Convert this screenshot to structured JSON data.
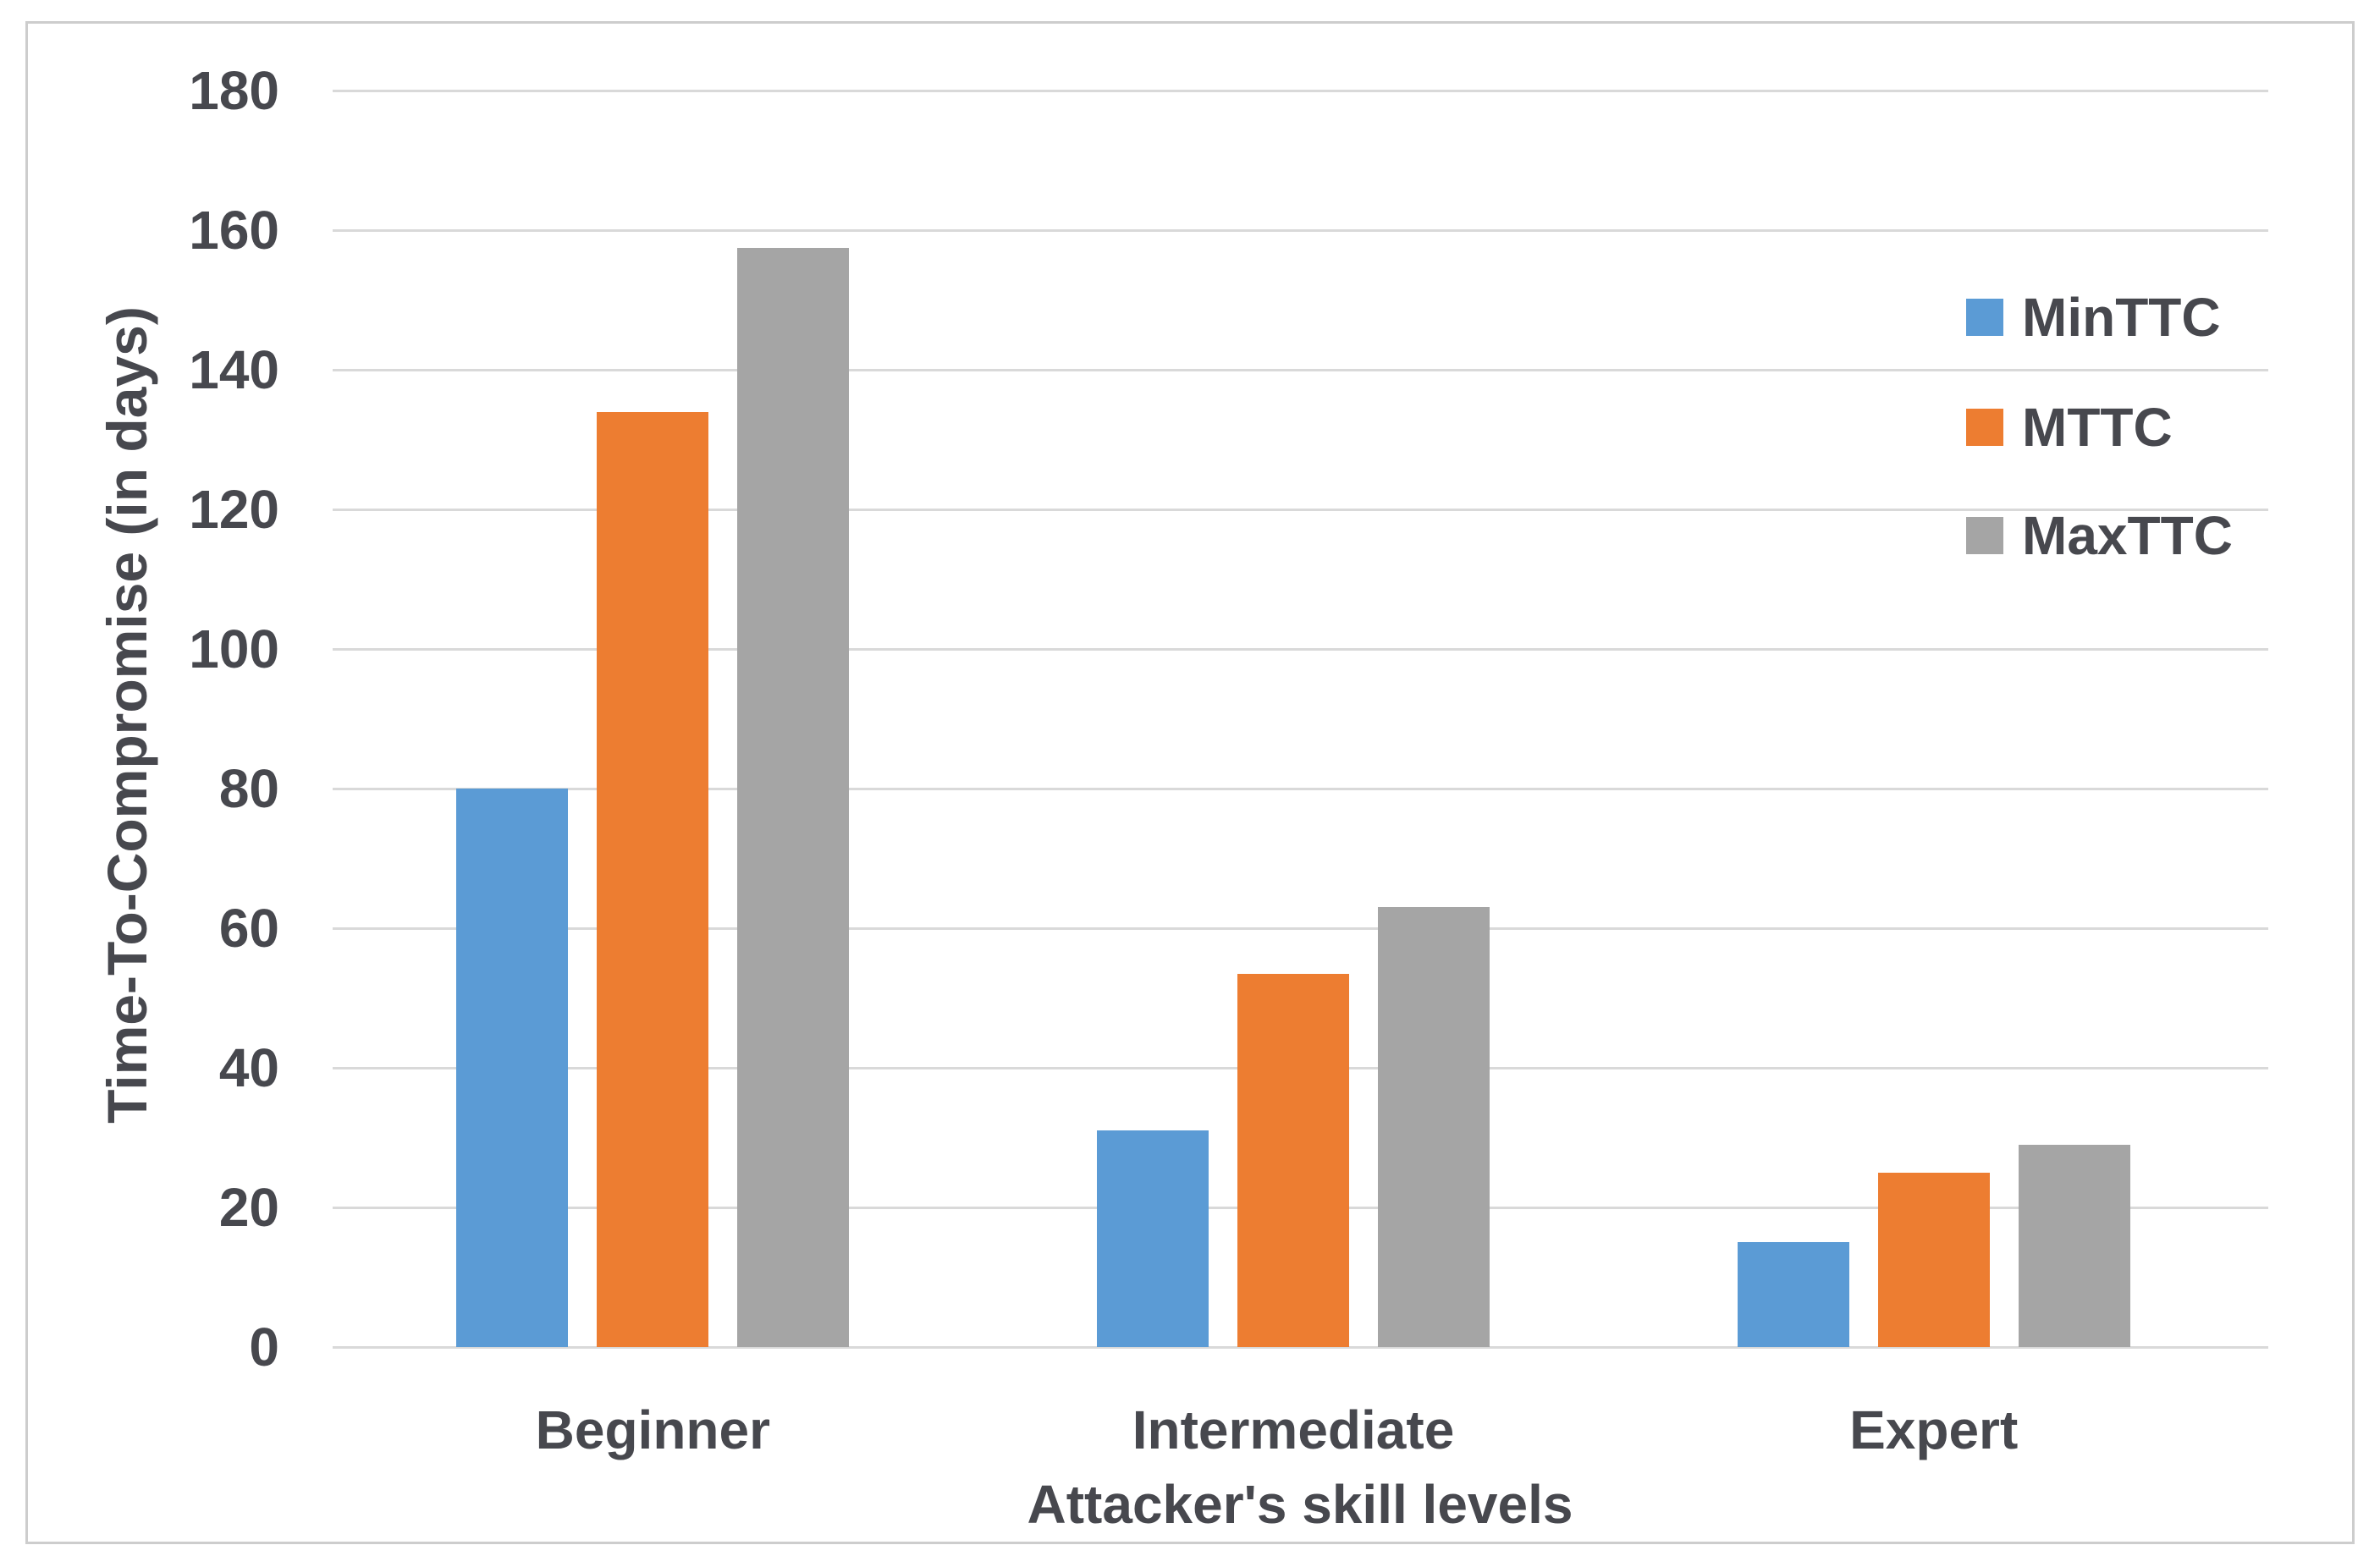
{
  "chart_data": {
    "type": "bar",
    "title": "",
    "categories": [
      "Beginner",
      "Intermediate",
      "Expert"
    ],
    "series": [
      {
        "name": "MinTTC",
        "color": "#5b9bd5",
        "values": [
          80,
          31,
          15
        ]
      },
      {
        "name": "MTTC",
        "color": "#ed7d31",
        "values": [
          134,
          53.5,
          25
        ]
      },
      {
        "name": "MaxTTC",
        "color": "#a5a5a5",
        "values": [
          157.5,
          63,
          29
        ]
      }
    ],
    "xlabel": "Attacker's skill levels",
    "ylabel": "Time-To-Compromise (in days)",
    "ylim": [
      0,
      180
    ],
    "ytick_step": 20,
    "yticks": [
      0,
      20,
      40,
      60,
      80,
      100,
      120,
      140,
      160,
      180
    ],
    "grid": true,
    "legend_position": "upper-right-inside",
    "colors": {
      "gridline": "#d9d9d9",
      "text": "#47484e",
      "frame_border": "#cdcdcd",
      "background": "#ffffff"
    }
  }
}
